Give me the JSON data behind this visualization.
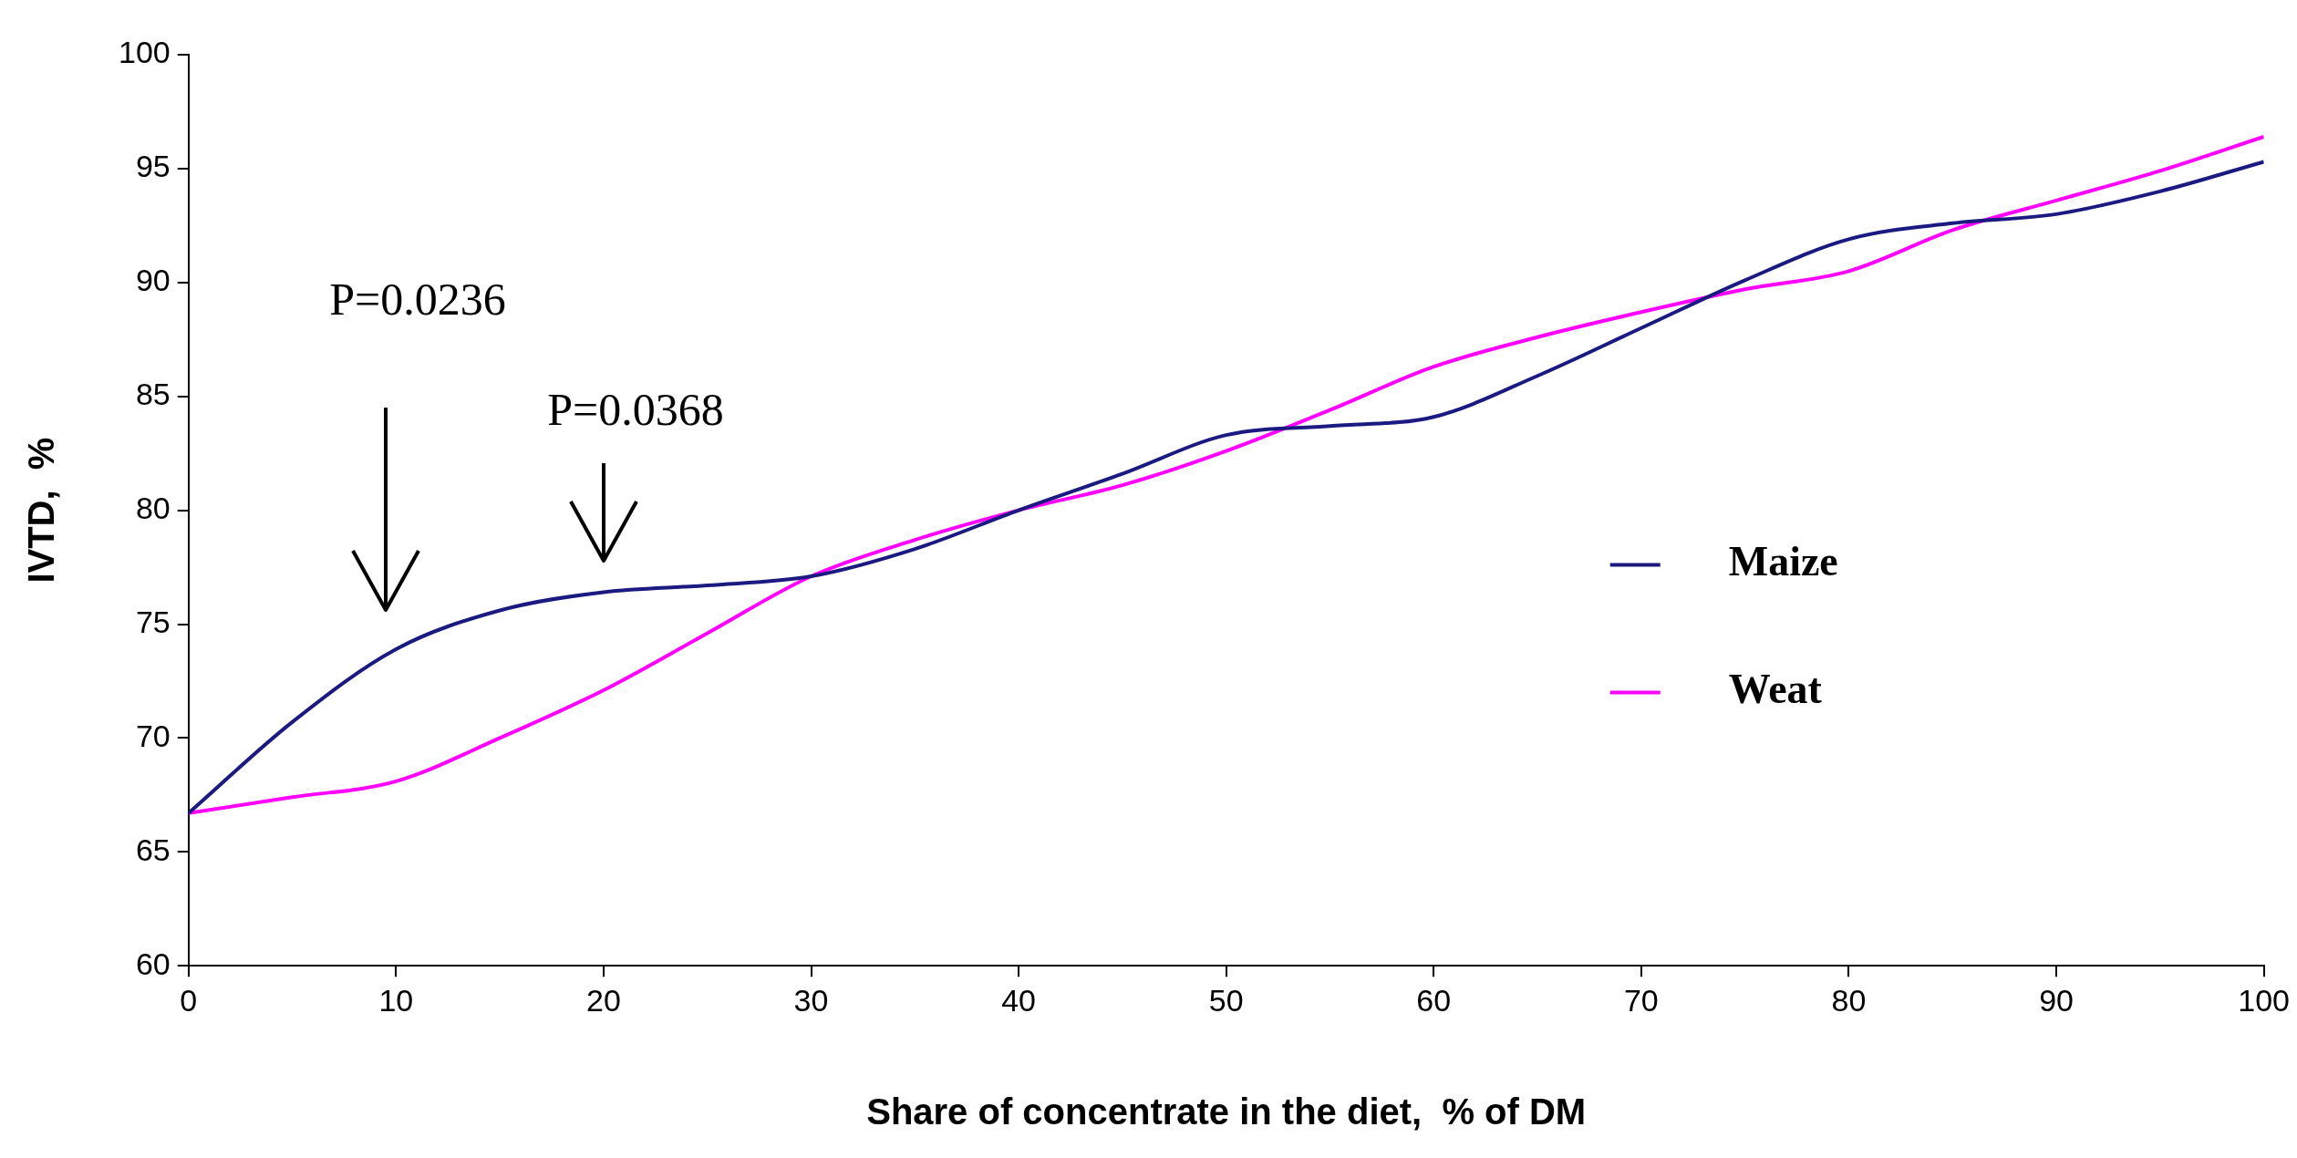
{
  "chart_data": {
    "type": "line",
    "xlabel": "Share of concentrate in the diet,  % of DM",
    "ylabel": "IVTD,  %",
    "x": [
      0,
      5,
      10,
      15,
      20,
      25,
      30,
      35,
      40,
      45,
      50,
      55,
      60,
      65,
      70,
      75,
      80,
      85,
      90,
      95,
      100
    ],
    "series": [
      {
        "name": "Maize",
        "color": "#1a1a80",
        "values": [
          66.7,
          70.7,
          73.9,
          75.6,
          76.4,
          76.7,
          77.1,
          78.3,
          80.0,
          81.6,
          83.3,
          83.7,
          84.1,
          85.9,
          88.0,
          90.1,
          91.9,
          92.6,
          93.0,
          94.0,
          95.3
        ]
      },
      {
        "name": "Weat",
        "color": "#ff00ff",
        "values": [
          66.7,
          67.4,
          68.1,
          70.0,
          72.1,
          74.6,
          77.1,
          78.7,
          80.0,
          81.1,
          82.6,
          84.4,
          86.3,
          87.6,
          88.7,
          89.7,
          90.5,
          92.3,
          93.6,
          94.9,
          96.4
        ]
      }
    ],
    "xlim": [
      0,
      100
    ],
    "xticks": [
      0,
      10,
      20,
      30,
      40,
      50,
      60,
      70,
      80,
      90,
      100
    ],
    "ylim": [
      60,
      100
    ],
    "yticks": [
      60,
      65,
      70,
      75,
      80,
      85,
      90,
      95,
      100
    ],
    "grid": false,
    "legend": "right",
    "marker": "none",
    "line_style": "solid",
    "annotations": [
      "P=0.0236",
      "P=0.0368"
    ]
  }
}
